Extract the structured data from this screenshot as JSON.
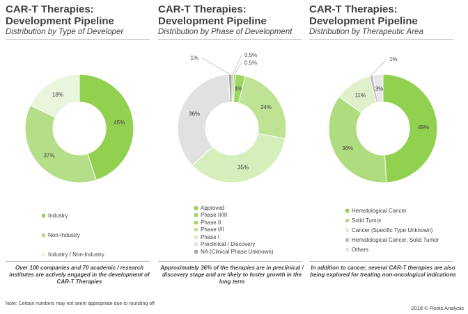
{
  "chart_data": [
    {
      "type": "donut",
      "title": "CAR-T Therapies: Development Pipeline",
      "subtitle": "Distribution by Type of Developer",
      "slices": [
        {
          "label": "Industry",
          "value": 45,
          "value_label": "45%",
          "color": "#92d050"
        },
        {
          "label": "Non-Industry",
          "value": 37,
          "value_label": "37%",
          "color": "#b5de88"
        },
        {
          "label": "Industry / Non-Industry",
          "value": 18,
          "value_label": "18%",
          "color": "#e9f5dc"
        }
      ],
      "note": "Over 100 companies and 70 academic / research institutes are actively engaged in the development of CAR-T Therapies"
    },
    {
      "type": "donut",
      "title": "CAR-T Therapies: Development Pipeline",
      "subtitle": "Distribution by Phase of Development",
      "slices": [
        {
          "label": "Approved",
          "value": 0.5,
          "value_label": "0.5%",
          "color": "#92d050"
        },
        {
          "label": "Phase II/III",
          "value": 0.5,
          "value_label": "0.5%",
          "color": "#a2d66a"
        },
        {
          "label": "Phase II",
          "value": 3,
          "value_label": "3%",
          "color": "#9fd565"
        },
        {
          "label": "Phase I/II",
          "value": 24,
          "value_label": "24%",
          "color": "#bee395"
        },
        {
          "label": "Phase I",
          "value": 35,
          "value_label": "35%",
          "color": "#d6eebb"
        },
        {
          "label": "Preclinical / Discovery",
          "value": 36,
          "value_label": "36%",
          "color": "#e1e1e1"
        },
        {
          "label": "NA (Clinical Phase Unknown)",
          "value": 1,
          "value_label": "1%",
          "color": "#a6a6a6"
        }
      ],
      "note": "Approximately 36% of the therapies are in preclinical / discovery stage and are likely to foster growth in the long term"
    },
    {
      "type": "donut",
      "title": "CAR-T Therapies: Development Pipeline",
      "subtitle": "Distribution by Therapeutic Area",
      "slices": [
        {
          "label": "Hematological Cancer",
          "value": 49,
          "value_label": "49%",
          "color": "#92d050"
        },
        {
          "label": "Solid Tumor",
          "value": 36,
          "value_label": "36%",
          "color": "#b0dc80"
        },
        {
          "label": "Cancer (Specific Type Unknown)",
          "value": 11,
          "value_label": "11%",
          "color": "#dff0cb"
        },
        {
          "label": "Hematological Cancer, Solid Tumor",
          "value": 1,
          "value_label": "1%",
          "color": "#bfbfbf"
        },
        {
          "label": "Others",
          "value": 3,
          "value_label": "3%",
          "color": "#e6e6e6"
        }
      ],
      "note": "In addition to cancer, several CAR-T therapies are also being explored for treating non-oncological indications"
    }
  ],
  "footnote": "Note: Certain numbers may not seem appropriate due to rounding off",
  "copyright": "2018 © Roots Analysis"
}
